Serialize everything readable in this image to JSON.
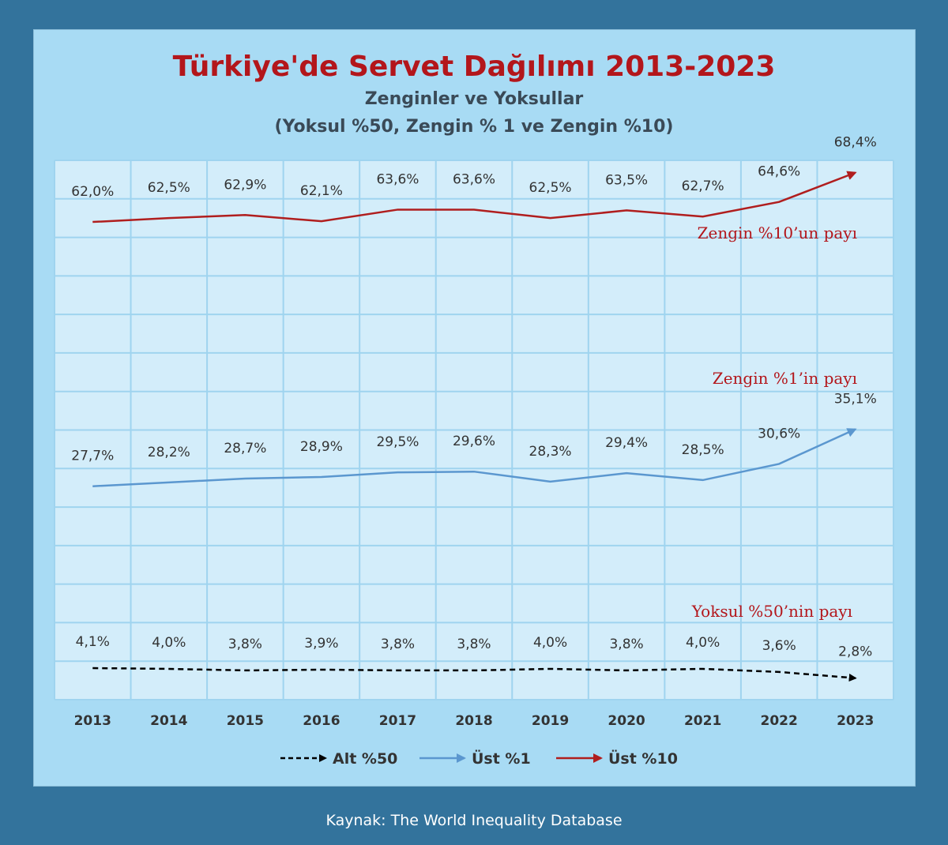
{
  "footer": {
    "source": "Kaynak: The World Inequality Database"
  },
  "colors": {
    "page_bg": "#33739c",
    "panel_bg": "#a8dbf4",
    "plot_bg": "#d3edfa",
    "grid": "#9fd4ef",
    "title": "#b3161b",
    "subtitle": "#3a4a57",
    "annotation": "#b3161b"
  },
  "chart_data": {
    "type": "line",
    "title": "Türkiye'de Servet Dağılımı 2013-2023",
    "subtitle_lines": [
      "Zenginler ve Yoksullar",
      "(Yoksul %50, Zengin % 1 ve Zengin %10)"
    ],
    "categories": [
      "2013",
      "2014",
      "2015",
      "2016",
      "2017",
      "2018",
      "2019",
      "2020",
      "2021",
      "2022",
      "2023"
    ],
    "ylim": [
      0,
      70
    ],
    "grid": true,
    "legend_position": "bottom",
    "series": [
      {
        "name": "Alt %50",
        "color": "#000000",
        "dashed": true,
        "values": [
          4.1,
          4.0,
          3.8,
          3.9,
          3.8,
          3.8,
          4.0,
          3.8,
          4.0,
          3.6,
          2.8
        ],
        "labels": [
          "4,1%",
          "4,0%",
          "3,8%",
          "3,9%",
          "3,8%",
          "3,8%",
          "4,0%",
          "3,8%",
          "4,0%",
          "3,6%",
          "2,8%"
        ]
      },
      {
        "name": "Üst %1",
        "color": "#5b97cf",
        "dashed": false,
        "values": [
          27.7,
          28.2,
          28.7,
          28.9,
          29.5,
          29.6,
          28.3,
          29.4,
          28.5,
          30.6,
          35.1
        ],
        "labels": [
          "27,7%",
          "28,2%",
          "28,7%",
          "28,9%",
          "29,5%",
          "29,6%",
          "28,3%",
          "29,4%",
          "28,5%",
          "30,6%",
          "35,1%"
        ]
      },
      {
        "name": "Üst %10",
        "color": "#b01e1e",
        "dashed": false,
        "values": [
          62.0,
          62.5,
          62.9,
          62.1,
          63.6,
          63.6,
          62.5,
          63.5,
          62.7,
          64.6,
          68.4
        ],
        "labels": [
          "62,0%",
          "62,5%",
          "62,9%",
          "62,1%",
          "63,6%",
          "63,6%",
          "62,5%",
          "63,5%",
          "62,7%",
          "64,6%",
          "68,4%"
        ]
      }
    ],
    "annotations": [
      "Zengin %10’un payı",
      "Zengin %1’in payı",
      "Yoksul %50’nin payı"
    ]
  }
}
